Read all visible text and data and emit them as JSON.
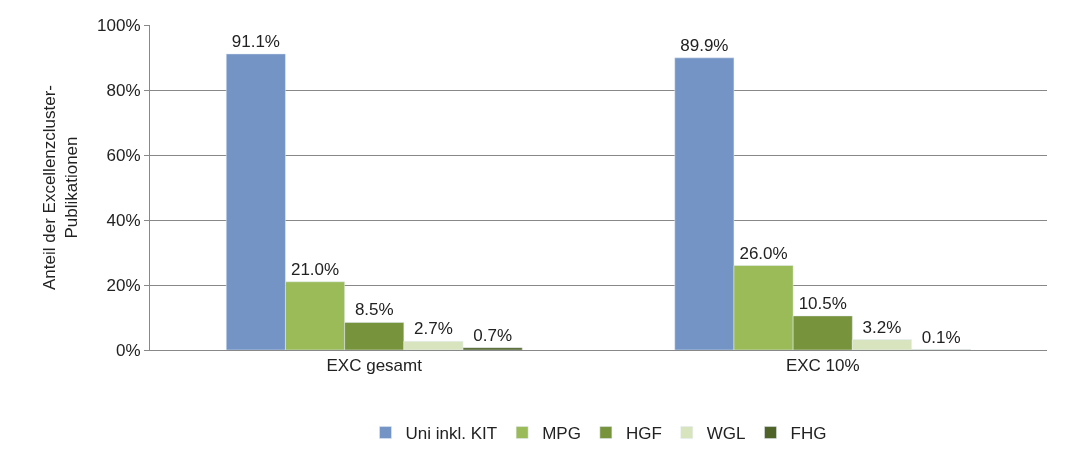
{
  "chart_data": {
    "type": "bar",
    "ylabel": "Anteil der Excellenzcluster-\nPublikationen",
    "categories": [
      "EXC gesamt",
      "EXC 10%"
    ],
    "series": [
      {
        "name": "Uni inkl. KIT",
        "color": "#7394c5",
        "values": [
          91.1,
          89.9
        ],
        "value_labels": [
          "91.1%",
          "89.9%"
        ]
      },
      {
        "name": "MPG",
        "color": "#9bbb59",
        "values": [
          21.0,
          26.0
        ],
        "value_labels": [
          "21.0%",
          "26.0%"
        ]
      },
      {
        "name": "HGF",
        "color": "#77933c",
        "values": [
          8.5,
          10.5
        ],
        "value_labels": [
          "8.5%",
          "10.5%"
        ]
      },
      {
        "name": "WGL",
        "color": "#d7e4bd",
        "values": [
          2.7,
          3.2
        ],
        "value_labels": [
          "2.7%",
          "3.2%"
        ]
      },
      {
        "name": "FHG",
        "color": "#4f6228",
        "values": [
          0.7,
          0.1
        ],
        "value_labels": [
          "0.7%",
          "0.1%"
        ]
      }
    ],
    "ylim": [
      0,
      100
    ],
    "yticks": [
      {
        "value": 0,
        "label": "0%"
      },
      {
        "value": 20,
        "label": "20%"
      },
      {
        "value": 40,
        "label": "40%"
      },
      {
        "value": 60,
        "label": "60%"
      },
      {
        "value": 80,
        "label": "80%"
      },
      {
        "value": 100,
        "label": "100%"
      }
    ],
    "grid": "y",
    "legend": "bottom"
  }
}
